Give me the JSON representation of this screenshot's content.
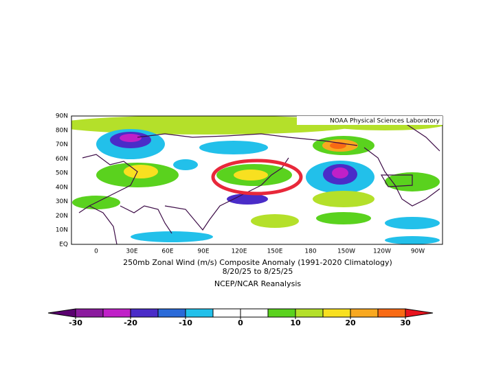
{
  "credit": "NOAA Physical Sciences Laboratory",
  "title": "250mb Zonal Wind (m/s) Composite Anomaly (1991-2020 Climatology)",
  "date_range": "8/20/25  to 8/25/25",
  "source": "NCEP/NCAR Reanalysis",
  "lat_labels": [
    "90N",
    "80N",
    "70N",
    "60N",
    "50N",
    "40N",
    "30N",
    "20N",
    "10N",
    "EQ"
  ],
  "lon_labels": [
    "0",
    "30E",
    "60E",
    "90E",
    "120E",
    "150E",
    "180",
    "150W",
    "120W",
    "90W"
  ],
  "colorbar": {
    "range": [
      -30,
      30
    ],
    "ticks": [
      -30,
      -20,
      -10,
      0,
      10,
      20,
      30
    ],
    "colors": [
      "#5a0070",
      "#8b1a9e",
      "#c020c8",
      "#4a2cc8",
      "#2a6ad8",
      "#22c0ea",
      "#ffffff",
      "#ffffff",
      "#5ad21e",
      "#b4e02a",
      "#f8e020",
      "#f8a820",
      "#f86a14",
      "#e8141e"
    ]
  }
}
